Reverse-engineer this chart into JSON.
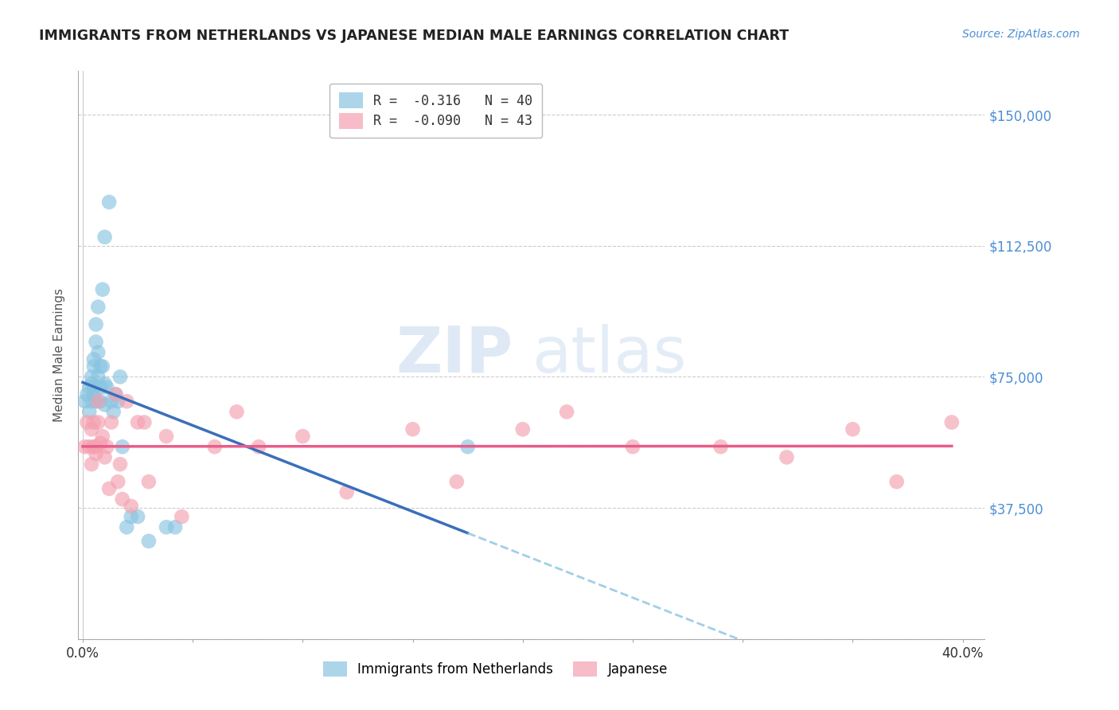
{
  "title": "IMMIGRANTS FROM NETHERLANDS VS JAPANESE MEDIAN MALE EARNINGS CORRELATION CHART",
  "source": "Source: ZipAtlas.com",
  "ylabel": "Median Male Earnings",
  "yticks": [
    0,
    37500,
    75000,
    112500,
    150000
  ],
  "ytick_labels": [
    "",
    "$37,500",
    "$75,000",
    "$112,500",
    "$150,000"
  ],
  "ymin": 0,
  "ymax": 162500,
  "xmin": -0.002,
  "xmax": 0.41,
  "R1": "-0.316",
  "N1": "40",
  "R2": "-0.090",
  "N2": "43",
  "color_blue": "#89c4e1",
  "color_pink": "#f4a0b0",
  "line_blue": "#3a6fba",
  "line_pink": "#e85d8a",
  "watermark_zip": "ZIP",
  "watermark_atlas": "atlas",
  "legend1_label": "Immigrants from Netherlands",
  "legend2_label": "Japanese",
  "blue_x": [
    0.001,
    0.002,
    0.003,
    0.003,
    0.004,
    0.004,
    0.004,
    0.005,
    0.005,
    0.005,
    0.005,
    0.006,
    0.006,
    0.006,
    0.007,
    0.007,
    0.007,
    0.008,
    0.008,
    0.008,
    0.009,
    0.009,
    0.01,
    0.01,
    0.01,
    0.011,
    0.012,
    0.013,
    0.014,
    0.015,
    0.016,
    0.017,
    0.018,
    0.02,
    0.022,
    0.025,
    0.03,
    0.038,
    0.042,
    0.175
  ],
  "blue_y": [
    68000,
    70000,
    72000,
    65000,
    75000,
    68000,
    73000,
    78000,
    72000,
    80000,
    70000,
    90000,
    85000,
    68000,
    82000,
    75000,
    95000,
    78000,
    68000,
    72000,
    100000,
    78000,
    115000,
    73000,
    67000,
    72000,
    125000,
    68000,
    65000,
    70000,
    68000,
    75000,
    55000,
    32000,
    35000,
    35000,
    28000,
    32000,
    32000,
    55000
  ],
  "pink_x": [
    0.001,
    0.002,
    0.003,
    0.004,
    0.004,
    0.005,
    0.005,
    0.006,
    0.006,
    0.007,
    0.007,
    0.008,
    0.009,
    0.01,
    0.011,
    0.012,
    0.013,
    0.015,
    0.016,
    0.017,
    0.018,
    0.02,
    0.022,
    0.025,
    0.028,
    0.03,
    0.038,
    0.045,
    0.06,
    0.07,
    0.08,
    0.1,
    0.12,
    0.15,
    0.17,
    0.2,
    0.22,
    0.25,
    0.29,
    0.32,
    0.35,
    0.37,
    0.395
  ],
  "pink_y": [
    55000,
    62000,
    55000,
    60000,
    50000,
    62000,
    55000,
    55000,
    53000,
    68000,
    62000,
    56000,
    58000,
    52000,
    55000,
    43000,
    62000,
    70000,
    45000,
    50000,
    40000,
    68000,
    38000,
    62000,
    62000,
    45000,
    58000,
    35000,
    55000,
    65000,
    55000,
    58000,
    42000,
    60000,
    45000,
    60000,
    65000,
    55000,
    55000,
    52000,
    60000,
    45000,
    62000
  ]
}
